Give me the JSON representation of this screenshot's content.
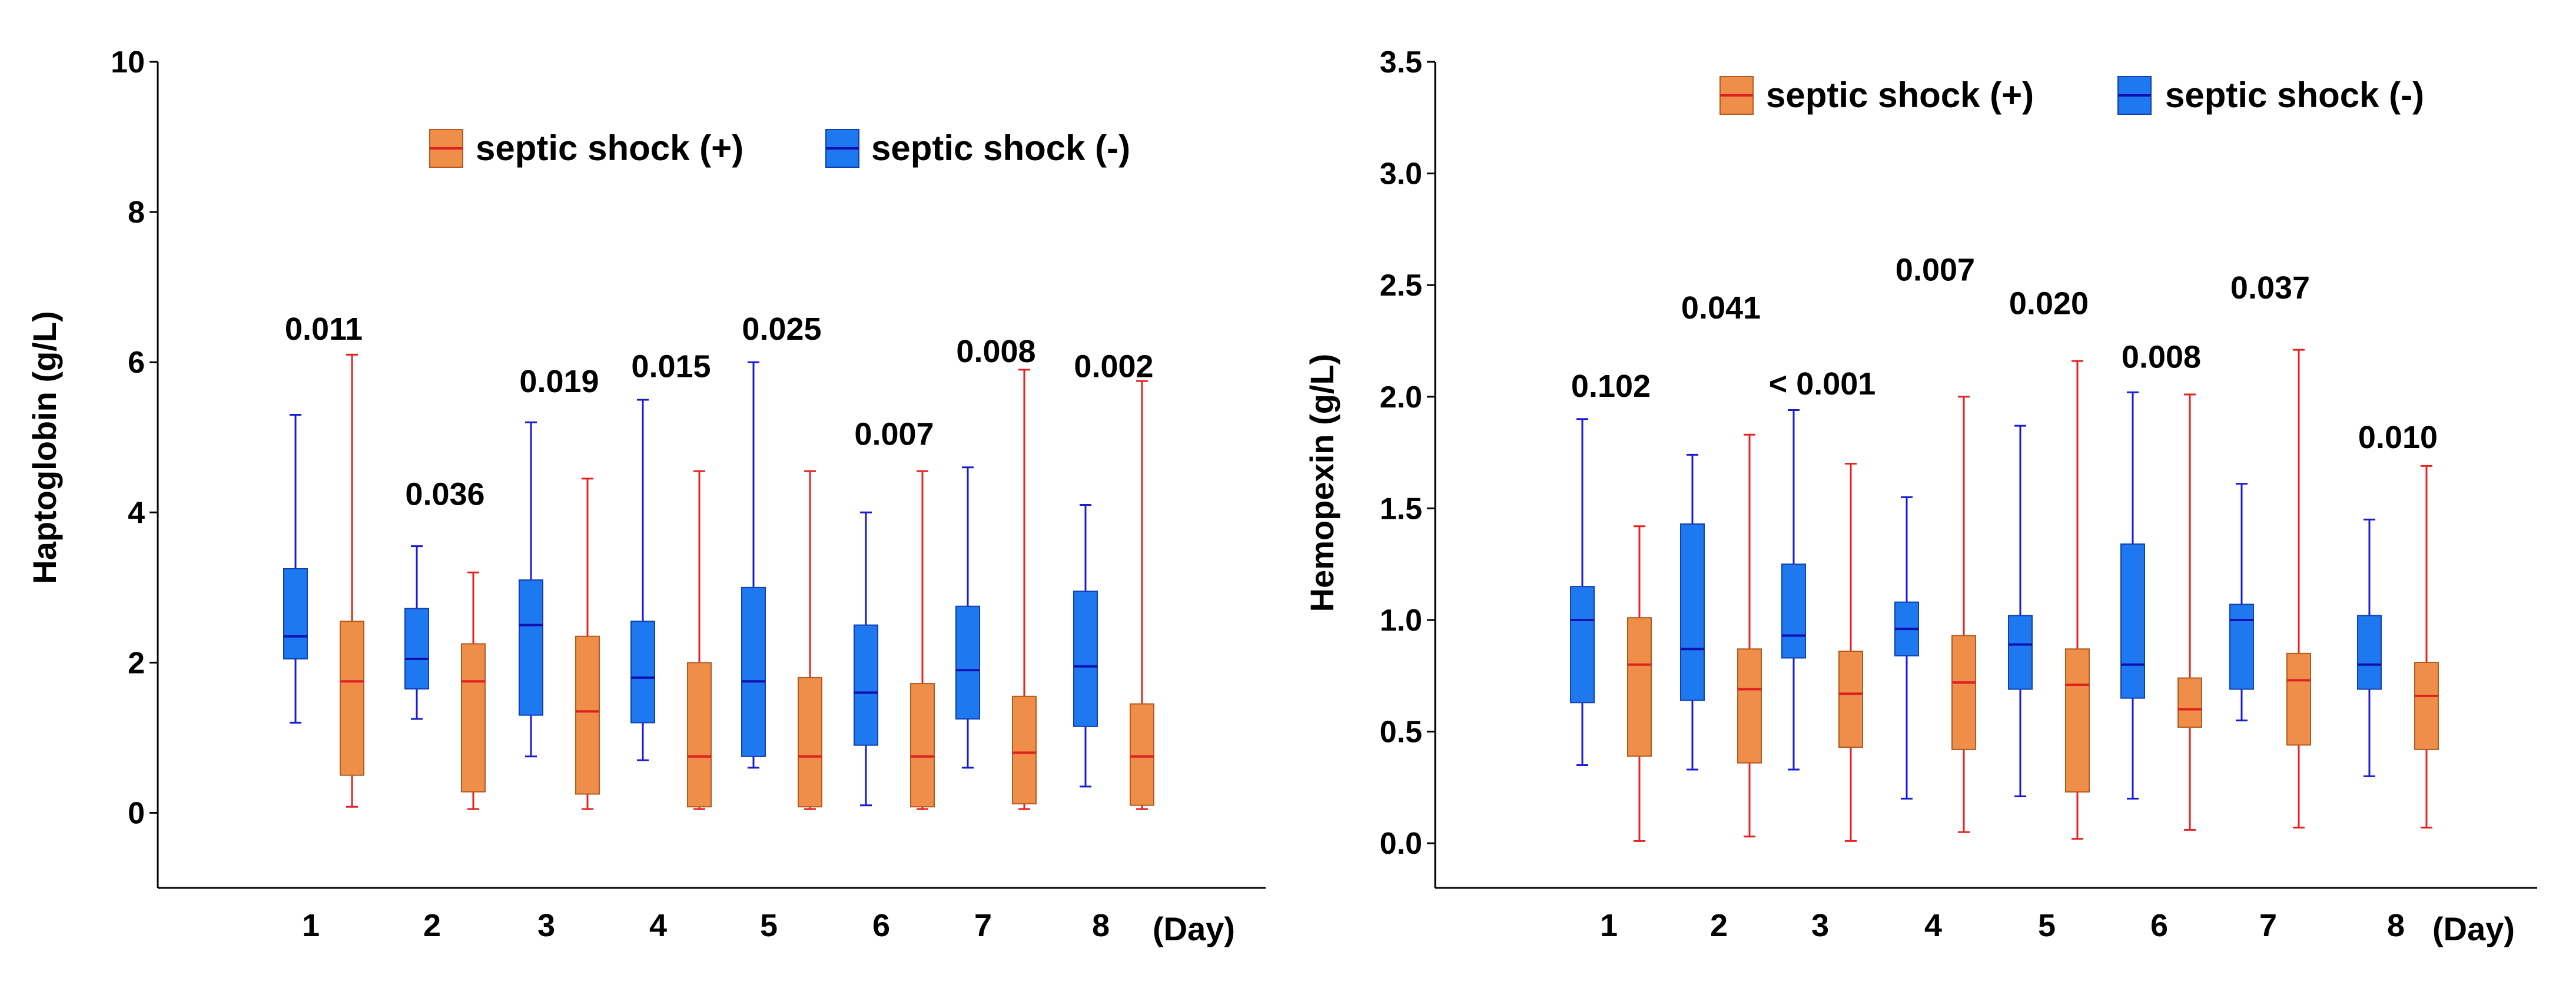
{
  "colors": {
    "pos_fill": "#ee8e48",
    "pos_edge": "#b45a1e",
    "pos_median": "#e02020",
    "pos_whisker": "#e82020",
    "neg_fill": "#1e78f0",
    "neg_edge": "#1040b0",
    "neg_median": "#1010b0",
    "neg_whisker": "#1a1ad6"
  },
  "chart_data": [
    {
      "type": "box",
      "ylabel": "Haptoglobin (g/L)",
      "xlabel_suffix": "(Day)",
      "ylim": [
        -1,
        10
      ],
      "yticks": [
        "0",
        "2",
        "4",
        "6",
        "8",
        "10"
      ],
      "categories": [
        "1",
        "2",
        "3",
        "4",
        "5",
        "6",
        "7",
        "8"
      ],
      "legend": {
        "pos_label": "septic shock (+)",
        "neg_label": "septic shock (-)"
      },
      "p_values": [
        "0.011",
        "0.036",
        "0.019",
        "0.015",
        "0.025",
        "0.007",
        "0.008",
        "0.002"
      ],
      "p_value_heights": [
        6.3,
        4.1,
        5.6,
        5.8,
        6.3,
        4.9,
        6.0,
        5.8
      ],
      "series": [
        {
          "name": "septic shock (-)",
          "boxes": [
            {
              "min": 1.2,
              "q1": 2.05,
              "median": 2.35,
              "q3": 3.25,
              "max": 5.3
            },
            {
              "min": 1.25,
              "q1": 1.65,
              "median": 2.05,
              "q3": 2.72,
              "max": 3.55
            },
            {
              "min": 0.75,
              "q1": 1.3,
              "median": 2.5,
              "q3": 3.1,
              "max": 5.2
            },
            {
              "min": 0.7,
              "q1": 1.2,
              "median": 1.8,
              "q3": 2.55,
              "max": 5.5
            },
            {
              "min": 0.6,
              "q1": 0.75,
              "median": 1.75,
              "q3": 3.0,
              "max": 6.0
            },
            {
              "min": 0.1,
              "q1": 0.9,
              "median": 1.6,
              "q3": 2.5,
              "max": 4.0
            },
            {
              "min": 0.6,
              "q1": 1.25,
              "median": 1.9,
              "q3": 2.75,
              "max": 4.6
            },
            {
              "min": 0.35,
              "q1": 1.15,
              "median": 1.95,
              "q3": 2.95,
              "max": 4.1
            }
          ]
        },
        {
          "name": "septic shock (+)",
          "boxes": [
            {
              "min": 0.08,
              "q1": 0.5,
              "median": 1.75,
              "q3": 2.55,
              "max": 6.1
            },
            {
              "min": 0.05,
              "q1": 0.28,
              "median": 1.75,
              "q3": 2.25,
              "max": 3.2
            },
            {
              "min": 0.05,
              "q1": 0.25,
              "median": 1.35,
              "q3": 2.35,
              "max": 4.45
            },
            {
              "min": 0.05,
              "q1": 0.08,
              "median": 0.75,
              "q3": 2.0,
              "max": 4.55
            },
            {
              "min": 0.05,
              "q1": 0.08,
              "median": 0.75,
              "q3": 1.8,
              "max": 4.55
            },
            {
              "min": 0.05,
              "q1": 0.08,
              "median": 0.75,
              "q3": 1.72,
              "max": 4.55
            },
            {
              "min": 0.05,
              "q1": 0.12,
              "median": 0.8,
              "q3": 1.55,
              "max": 5.9
            },
            {
              "min": 0.05,
              "q1": 0.1,
              "median": 0.75,
              "q3": 1.45,
              "max": 5.75
            }
          ]
        }
      ]
    },
    {
      "type": "box",
      "ylabel": "Hemopexin (g/L)",
      "xlabel_suffix": "(Day)",
      "ylim": [
        -0.2,
        3.5
      ],
      "yticks": [
        "0.0",
        "0.5",
        "1.0",
        "1.5",
        "2.0",
        "2.5",
        "3.0",
        "3.5"
      ],
      "categories": [
        "1",
        "2",
        "3",
        "4",
        "5",
        "6",
        "7",
        "8"
      ],
      "legend": {
        "pos_label": "septic shock (+)",
        "neg_label": "septic shock (-)"
      },
      "p_values": [
        "0.102",
        "0.041",
        "< 0.001",
        "0.007",
        "0.020",
        "0.008",
        "0.037",
        "0.010"
      ],
      "p_value_heights": [
        2.0,
        2.35,
        2.01,
        2.52,
        2.37,
        2.13,
        2.44,
        1.77
      ],
      "series": [
        {
          "name": "septic shock (-)",
          "boxes": [
            {
              "min": 0.35,
              "q1": 0.63,
              "median": 1.0,
              "q3": 1.15,
              "max": 1.9
            },
            {
              "min": 0.33,
              "q1": 0.64,
              "median": 0.87,
              "q3": 1.43,
              "max": 1.74
            },
            {
              "min": 0.33,
              "q1": 0.83,
              "median": 0.93,
              "q3": 1.25,
              "max": 1.94
            },
            {
              "min": 0.2,
              "q1": 0.84,
              "median": 0.96,
              "q3": 1.08,
              "max": 1.55
            },
            {
              "min": 0.21,
              "q1": 0.69,
              "median": 0.89,
              "q3": 1.02,
              "max": 1.87
            },
            {
              "min": 0.2,
              "q1": 0.65,
              "median": 0.8,
              "q3": 1.34,
              "max": 2.02
            },
            {
              "min": 0.55,
              "q1": 0.69,
              "median": 1.0,
              "q3": 1.07,
              "max": 1.61
            },
            {
              "min": 0.3,
              "q1": 0.69,
              "median": 0.8,
              "q3": 1.02,
              "max": 1.45
            }
          ]
        },
        {
          "name": "septic shock (+)",
          "boxes": [
            {
              "min": 0.01,
              "q1": 0.39,
              "median": 0.8,
              "q3": 1.01,
              "max": 1.42
            },
            {
              "min": 0.03,
              "q1": 0.36,
              "median": 0.69,
              "q3": 0.87,
              "max": 1.83
            },
            {
              "min": 0.01,
              "q1": 0.43,
              "median": 0.67,
              "q3": 0.86,
              "max": 1.7
            },
            {
              "min": 0.05,
              "q1": 0.42,
              "median": 0.72,
              "q3": 0.93,
              "max": 2.0
            },
            {
              "min": 0.02,
              "q1": 0.23,
              "median": 0.71,
              "q3": 0.87,
              "max": 2.16
            },
            {
              "min": 0.06,
              "q1": 0.52,
              "median": 0.6,
              "q3": 0.74,
              "max": 2.01
            },
            {
              "min": 0.07,
              "q1": 0.44,
              "median": 0.73,
              "q3": 0.85,
              "max": 2.21
            },
            {
              "min": 0.07,
              "q1": 0.42,
              "median": 0.66,
              "q3": 0.81,
              "max": 1.69
            }
          ]
        }
      ]
    }
  ]
}
